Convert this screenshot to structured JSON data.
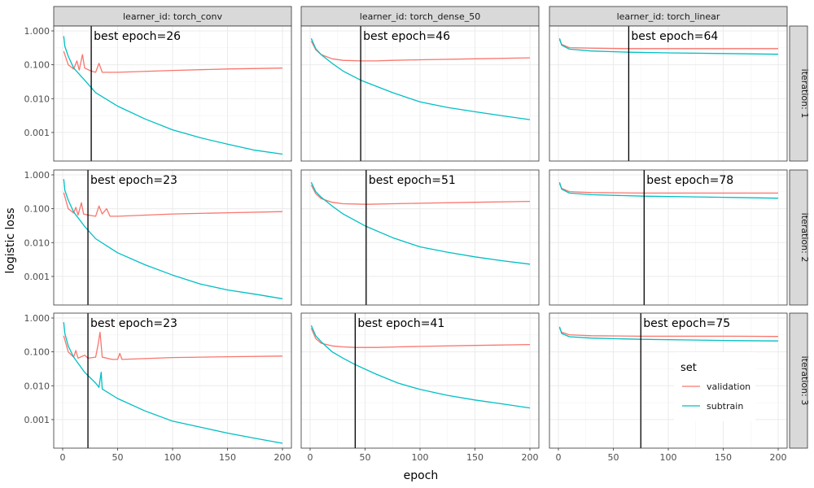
{
  "chart_data": {
    "type": "line",
    "layout": "facet_grid",
    "x_label": "epoch",
    "y_label": "logistic loss",
    "y_scale": "log10",
    "xlim": [
      0,
      200
    ],
    "ylim": [
      0.0002,
      1.0
    ],
    "x_ticks": [
      0,
      50,
      100,
      150,
      200
    ],
    "y_ticks": [
      {
        "value": 0.001,
        "label": "0.001"
      },
      {
        "value": 0.01,
        "label": "0.010"
      },
      {
        "value": 0.1,
        "label": "0.100"
      },
      {
        "value": 1.0,
        "label": "1.000"
      }
    ],
    "grid": true,
    "columns": [
      "learner_id: torch_conv",
      "learner_id: torch_dense_50",
      "learner_id: torch_linear"
    ],
    "rows": [
      "iteration: 1",
      "iteration: 2",
      "iteration: 3"
    ],
    "legend": {
      "title": "set",
      "position": "inside-bottom-right",
      "entries": [
        {
          "name": "validation",
          "color": "#F8766D"
        },
        {
          "name": "subtrain",
          "color": "#00BFC4"
        }
      ]
    },
    "best_label_prefix": "best epoch=",
    "panels": [
      {
        "row": 0,
        "col": 0,
        "best_epoch": 26,
        "series": [
          {
            "name": "validation",
            "points": [
              [
                1,
                0.25
              ],
              [
                5,
                0.1
              ],
              [
                10,
                0.075
              ],
              [
                13,
                0.13
              ],
              [
                15,
                0.07
              ],
              [
                18,
                0.2
              ],
              [
                20,
                0.08
              ],
              [
                26,
                0.065
              ],
              [
                30,
                0.06
              ],
              [
                33,
                0.11
              ],
              [
                36,
                0.06
              ],
              [
                50,
                0.06
              ],
              [
                100,
                0.068
              ],
              [
                150,
                0.075
              ],
              [
                200,
                0.08
              ]
            ]
          },
          {
            "name": "subtrain",
            "points": [
              [
                1,
                0.7
              ],
              [
                2,
                0.35
              ],
              [
                5,
                0.18
              ],
              [
                10,
                0.08
              ],
              [
                20,
                0.035
              ],
              [
                30,
                0.015
              ],
              [
                50,
                0.006
              ],
              [
                75,
                0.0025
              ],
              [
                100,
                0.0012
              ],
              [
                125,
                0.0007
              ],
              [
                150,
                0.00045
              ],
              [
                175,
                0.0003
              ],
              [
                200,
                0.00023
              ]
            ]
          }
        ]
      },
      {
        "row": 0,
        "col": 1,
        "best_epoch": 46,
        "series": [
          {
            "name": "validation",
            "points": [
              [
                1,
                0.5
              ],
              [
                5,
                0.28
              ],
              [
                10,
                0.2
              ],
              [
                20,
                0.15
              ],
              [
                30,
                0.135
              ],
              [
                46,
                0.13
              ],
              [
                60,
                0.13
              ],
              [
                75,
                0.135
              ],
              [
                100,
                0.14
              ],
              [
                150,
                0.15
              ],
              [
                200,
                0.16
              ]
            ]
          },
          {
            "name": "subtrain",
            "points": [
              [
                1,
                0.6
              ],
              [
                5,
                0.3
              ],
              [
                10,
                0.2
              ],
              [
                20,
                0.11
              ],
              [
                30,
                0.065
              ],
              [
                46,
                0.035
              ],
              [
                75,
                0.015
              ],
              [
                100,
                0.008
              ],
              [
                125,
                0.0055
              ],
              [
                150,
                0.0041
              ],
              [
                175,
                0.0031
              ],
              [
                200,
                0.0024
              ]
            ]
          }
        ]
      },
      {
        "row": 0,
        "col": 2,
        "best_epoch": 64,
        "series": [
          {
            "name": "validation",
            "points": [
              [
                1,
                0.55
              ],
              [
                3,
                0.4
              ],
              [
                10,
                0.32
              ],
              [
                30,
                0.31
              ],
              [
                64,
                0.3
              ],
              [
                100,
                0.3
              ],
              [
                150,
                0.3
              ],
              [
                200,
                0.3
              ]
            ]
          },
          {
            "name": "subtrain",
            "points": [
              [
                1,
                0.6
              ],
              [
                3,
                0.38
              ],
              [
                10,
                0.29
              ],
              [
                30,
                0.255
              ],
              [
                64,
                0.235
              ],
              [
                100,
                0.225
              ],
              [
                150,
                0.215
              ],
              [
                200,
                0.205
              ]
            ]
          }
        ]
      },
      {
        "row": 1,
        "col": 0,
        "best_epoch": 23,
        "series": [
          {
            "name": "validation",
            "points": [
              [
                1,
                0.3
              ],
              [
                5,
                0.1
              ],
              [
                10,
                0.075
              ],
              [
                12,
                0.11
              ],
              [
                14,
                0.065
              ],
              [
                17,
                0.15
              ],
              [
                19,
                0.07
              ],
              [
                23,
                0.065
              ],
              [
                30,
                0.06
              ],
              [
                33,
                0.12
              ],
              [
                36,
                0.07
              ],
              [
                40,
                0.1
              ],
              [
                43,
                0.06
              ],
              [
                50,
                0.06
              ],
              [
                100,
                0.07
              ],
              [
                150,
                0.076
              ],
              [
                200,
                0.082
              ]
            ]
          },
          {
            "name": "subtrain",
            "points": [
              [
                1,
                0.75
              ],
              [
                2,
                0.35
              ],
              [
                5,
                0.18
              ],
              [
                10,
                0.08
              ],
              [
                20,
                0.03
              ],
              [
                30,
                0.013
              ],
              [
                50,
                0.005
              ],
              [
                75,
                0.0022
              ],
              [
                100,
                0.0011
              ],
              [
                125,
                0.0006
              ],
              [
                150,
                0.0004
              ],
              [
                175,
                0.0003
              ],
              [
                200,
                0.00022
              ]
            ]
          }
        ]
      },
      {
        "row": 1,
        "col": 1,
        "best_epoch": 51,
        "series": [
          {
            "name": "validation",
            "points": [
              [
                1,
                0.5
              ],
              [
                5,
                0.28
              ],
              [
                10,
                0.2
              ],
              [
                20,
                0.155
              ],
              [
                30,
                0.14
              ],
              [
                51,
                0.135
              ],
              [
                75,
                0.14
              ],
              [
                100,
                0.145
              ],
              [
                150,
                0.155
              ],
              [
                200,
                0.165
              ]
            ]
          },
          {
            "name": "subtrain",
            "points": [
              [
                1,
                0.6
              ],
              [
                5,
                0.32
              ],
              [
                10,
                0.22
              ],
              [
                20,
                0.12
              ],
              [
                30,
                0.07
              ],
              [
                51,
                0.03
              ],
              [
                75,
                0.014
              ],
              [
                100,
                0.0075
              ],
              [
                125,
                0.0052
              ],
              [
                150,
                0.0038
              ],
              [
                175,
                0.0029
              ],
              [
                200,
                0.0023
              ]
            ]
          }
        ]
      },
      {
        "row": 1,
        "col": 2,
        "best_epoch": 78,
        "series": [
          {
            "name": "validation",
            "points": [
              [
                1,
                0.55
              ],
              [
                3,
                0.4
              ],
              [
                10,
                0.32
              ],
              [
                30,
                0.3
              ],
              [
                78,
                0.29
              ],
              [
                120,
                0.29
              ],
              [
                160,
                0.29
              ],
              [
                200,
                0.29
              ]
            ]
          },
          {
            "name": "subtrain",
            "points": [
              [
                1,
                0.6
              ],
              [
                3,
                0.38
              ],
              [
                10,
                0.29
              ],
              [
                30,
                0.26
              ],
              [
                78,
                0.235
              ],
              [
                120,
                0.225
              ],
              [
                160,
                0.215
              ],
              [
                200,
                0.205
              ]
            ]
          }
        ]
      },
      {
        "row": 2,
        "col": 0,
        "best_epoch": 23,
        "series": [
          {
            "name": "validation",
            "points": [
              [
                1,
                0.3
              ],
              [
                5,
                0.1
              ],
              [
                10,
                0.07
              ],
              [
                12,
                0.11
              ],
              [
                14,
                0.065
              ],
              [
                20,
                0.08
              ],
              [
                23,
                0.065
              ],
              [
                30,
                0.07
              ],
              [
                32,
                0.15
              ],
              [
                34,
                0.38
              ],
              [
                36,
                0.07
              ],
              [
                45,
                0.06
              ],
              [
                50,
                0.06
              ],
              [
                52,
                0.09
              ],
              [
                54,
                0.06
              ],
              [
                100,
                0.068
              ],
              [
                150,
                0.072
              ],
              [
                200,
                0.075
              ]
            ]
          },
          {
            "name": "subtrain",
            "points": [
              [
                1,
                0.75
              ],
              [
                2,
                0.35
              ],
              [
                5,
                0.15
              ],
              [
                10,
                0.07
              ],
              [
                20,
                0.025
              ],
              [
                30,
                0.012
              ],
              [
                33,
                0.009
              ],
              [
                35,
                0.025
              ],
              [
                36,
                0.008
              ],
              [
                50,
                0.0042
              ],
              [
                75,
                0.0018
              ],
              [
                100,
                0.0009
              ],
              [
                125,
                0.0006
              ],
              [
                150,
                0.0004
              ],
              [
                175,
                0.00028
              ],
              [
                200,
                0.0002
              ]
            ]
          }
        ]
      },
      {
        "row": 2,
        "col": 1,
        "best_epoch": 41,
        "series": [
          {
            "name": "validation",
            "points": [
              [
                1,
                0.5
              ],
              [
                5,
                0.25
              ],
              [
                10,
                0.18
              ],
              [
                20,
                0.15
              ],
              [
                30,
                0.14
              ],
              [
                41,
                0.135
              ],
              [
                60,
                0.135
              ],
              [
                80,
                0.14
              ],
              [
                100,
                0.145
              ],
              [
                150,
                0.155
              ],
              [
                200,
                0.165
              ]
            ]
          },
          {
            "name": "subtrain",
            "points": [
              [
                1,
                0.6
              ],
              [
                5,
                0.3
              ],
              [
                10,
                0.2
              ],
              [
                20,
                0.1
              ],
              [
                30,
                0.065
              ],
              [
                41,
                0.042
              ],
              [
                60,
                0.022
              ],
              [
                80,
                0.012
              ],
              [
                100,
                0.0078
              ],
              [
                125,
                0.0052
              ],
              [
                150,
                0.0038
              ],
              [
                175,
                0.0029
              ],
              [
                200,
                0.0022
              ]
            ]
          }
        ]
      },
      {
        "row": 2,
        "col": 2,
        "best_epoch": 75,
        "series": [
          {
            "name": "validation",
            "points": [
              [
                1,
                0.5
              ],
              [
                3,
                0.38
              ],
              [
                10,
                0.32
              ],
              [
                30,
                0.3
              ],
              [
                75,
                0.29
              ],
              [
                120,
                0.29
              ],
              [
                160,
                0.29
              ],
              [
                200,
                0.285
              ]
            ]
          },
          {
            "name": "subtrain",
            "points": [
              [
                1,
                0.55
              ],
              [
                3,
                0.35
              ],
              [
                10,
                0.28
              ],
              [
                30,
                0.255
              ],
              [
                75,
                0.235
              ],
              [
                120,
                0.225
              ],
              [
                160,
                0.215
              ],
              [
                200,
                0.21
              ]
            ]
          }
        ]
      }
    ]
  }
}
